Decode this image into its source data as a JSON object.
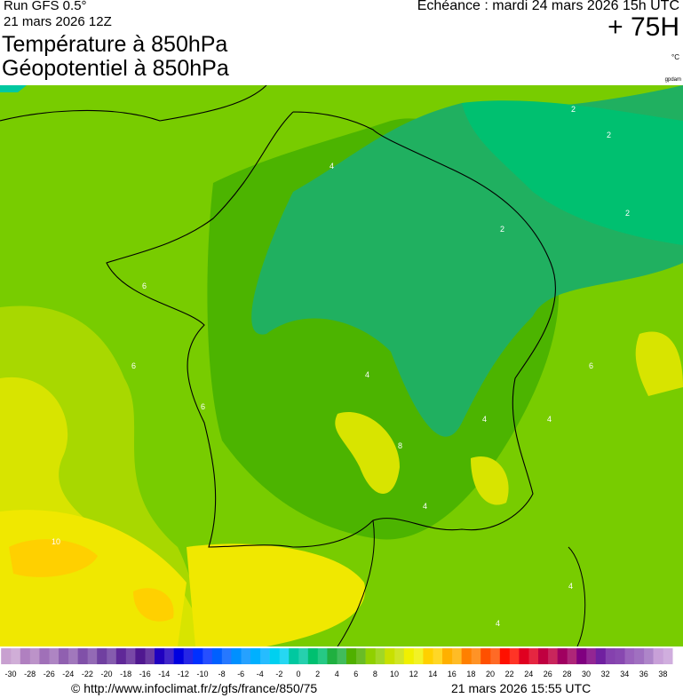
{
  "header": {
    "run": "Run GFS 0.5°",
    "date": "21 mars 2026 12Z",
    "title1": "Température à 850hPa",
    "title2": "Géopotentiel à 850hPa",
    "echeance": "Echéance : mardi 24 mars 2026 15h UTC",
    "lead": "+ 75H",
    "unit": "°C",
    "geo_unit": "gpdam"
  },
  "map": {
    "contour_labels": [
      "2",
      "2",
      "2",
      "2",
      "4",
      "4",
      "4",
      "4",
      "4",
      "4",
      "4",
      "6",
      "6",
      "6",
      "6",
      "8",
      "10"
    ]
  },
  "colorbar": {
    "ticks": [
      -30,
      -28,
      -26,
      -24,
      -22,
      -20,
      -18,
      -16,
      -14,
      -12,
      -10,
      -8,
      -6,
      -4,
      -2,
      0,
      2,
      4,
      6,
      8,
      10,
      12,
      14,
      16,
      18,
      20,
      22,
      24,
      26,
      28,
      30,
      32,
      34,
      36,
      38
    ],
    "colors": [
      "#c8a0d0",
      "#b080c0",
      "#a070b8",
      "#9060b0",
      "#8050a8",
      "#7040a0",
      "#602898",
      "#501890",
      "#2000c0",
      "#0000e0",
      "#0030ff",
      "#0060ff",
      "#0090ff",
      "#00b0ff",
      "#00d0f0",
      "#00c8a0",
      "#00c070",
      "#20b040",
      "#50b000",
      "#90d000",
      "#c8e000",
      "#f0f000",
      "#ffd000",
      "#ffb000",
      "#ff8000",
      "#ff5000",
      "#ff1000",
      "#e00020",
      "#c00040",
      "#a00060",
      "#800080",
      "#7020a0",
      "#8848b0",
      "#a070c0",
      "#c8a0d8"
    ]
  },
  "footer": {
    "url": "© http://www.infoclimat.fr/z/gfs/france/850/75",
    "generated": "21 mars 2026 15:55 UTC"
  }
}
